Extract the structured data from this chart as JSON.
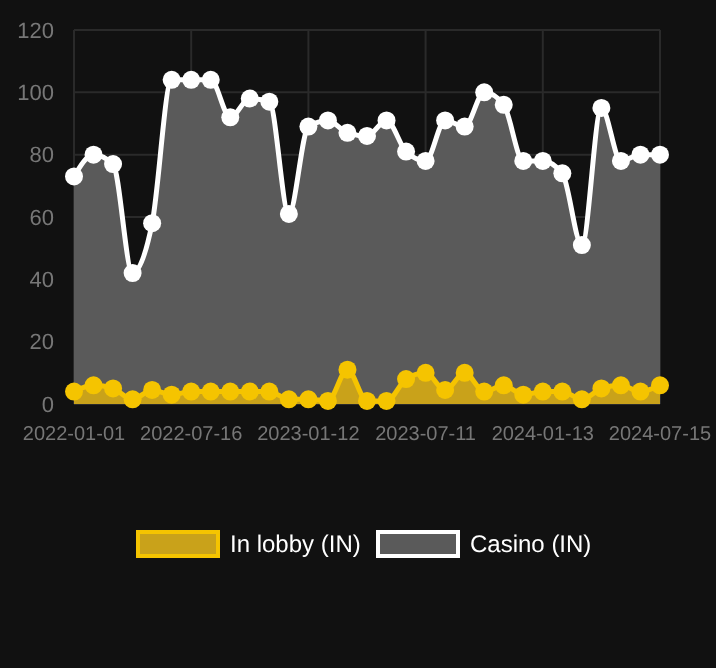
{
  "chart_data": {
    "type": "area",
    "categories": [
      "2022-01-01",
      null,
      null,
      null,
      null,
      null,
      "2022-07-16",
      null,
      null,
      null,
      null,
      null,
      "2023-01-12",
      null,
      null,
      null,
      null,
      null,
      "2023-07-11",
      null,
      null,
      null,
      null,
      null,
      "2024-01-13",
      null,
      null,
      null,
      null,
      null,
      "2024-07-15"
    ],
    "series": [
      {
        "name": "In lobby (IN)",
        "color": "#f5c400",
        "values": [
          4,
          6,
          5,
          1.5,
          4.5,
          3,
          4,
          4,
          4,
          4,
          4,
          1.5,
          1.5,
          1,
          11,
          1,
          1,
          8,
          10,
          4.5,
          10,
          4,
          6,
          3,
          4,
          4,
          1.5,
          5,
          6,
          4,
          6
        ]
      },
      {
        "name": "Casino (IN)",
        "color": "#ffffff",
        "values": [
          73,
          80,
          77,
          42,
          58,
          104,
          104,
          104,
          92,
          98,
          97,
          61,
          89,
          91,
          87,
          86,
          91,
          81,
          78,
          91,
          89,
          100,
          96,
          78,
          78,
          74,
          51,
          95,
          78,
          80,
          80
        ]
      }
    ],
    "ylim": [
      0,
      120
    ],
    "yticks": [
      0,
      20,
      40,
      60,
      80,
      100,
      120
    ],
    "grid": true,
    "legend": "bottom",
    "marker": "circle"
  }
}
